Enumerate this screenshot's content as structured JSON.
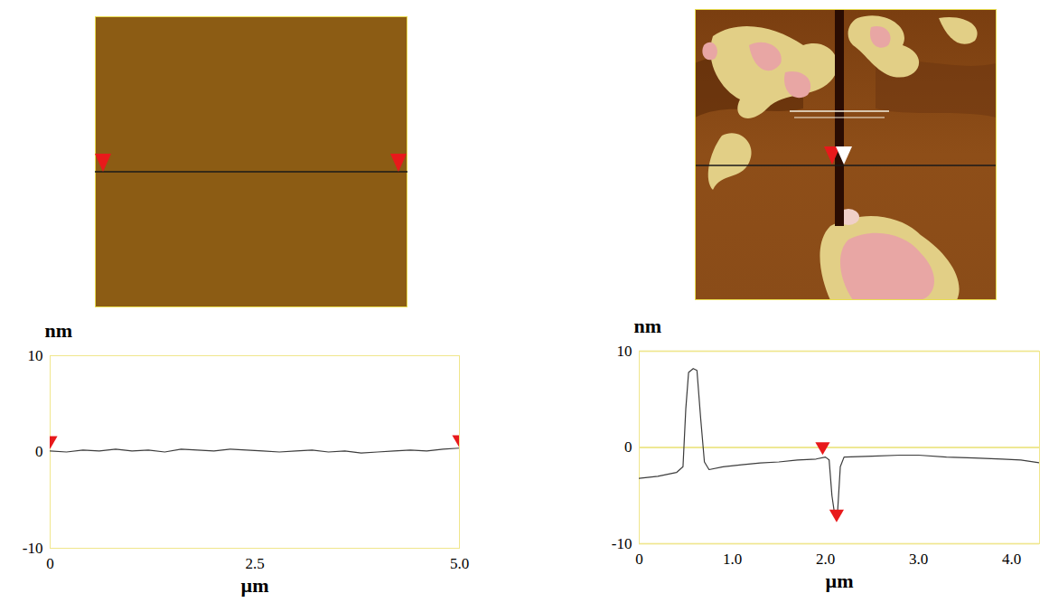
{
  "chart_data": [
    {
      "type": "line",
      "x": [
        0,
        0.2,
        0.4,
        0.6,
        0.8,
        1.0,
        1.2,
        1.4,
        1.6,
        1.8,
        2.0,
        2.2,
        2.4,
        2.6,
        2.8,
        3.0,
        3.2,
        3.4,
        3.6,
        3.8,
        4.0,
        4.2,
        4.4,
        4.6,
        4.8,
        5.0
      ],
      "values": [
        0.1,
        0.0,
        0.2,
        0.1,
        0.3,
        0.1,
        0.2,
        0.0,
        0.3,
        0.2,
        0.1,
        0.3,
        0.2,
        0.1,
        0.0,
        0.1,
        0.2,
        0.0,
        0.1,
        -0.1,
        0.0,
        0.1,
        0.2,
        0.1,
        0.3,
        0.4
      ],
      "color": "#3c3c3c",
      "x_label": "µm",
      "y_label": "nm",
      "xlim": [
        0,
        5
      ],
      "ylim": [
        -10,
        10
      ],
      "xticks": [
        0,
        2.5,
        {
          "value": 5,
          "label": "5.0"
        }
      ],
      "yticks": [
        -10,
        0,
        10
      ],
      "grid": false,
      "cursor_x": [
        0,
        5
      ],
      "cursor_y": [
        1.2,
        1.3
      ]
    },
    {
      "type": "line",
      "x": [
        0,
        0.2,
        0.4,
        0.47,
        0.5,
        0.53,
        0.58,
        0.62,
        0.66,
        0.7,
        0.75,
        0.9,
        1.1,
        1.3,
        1.5,
        1.7,
        1.9,
        2.0,
        2.04,
        2.07,
        2.1,
        2.13,
        2.16,
        2.2,
        2.5,
        2.8,
        3.0,
        3.3,
        3.6,
        3.9,
        4.1,
        4.3
      ],
      "values": [
        -3.2,
        -3.0,
        -2.6,
        -2.0,
        4.0,
        7.8,
        8.2,
        8.0,
        3.0,
        -1.5,
        -2.3,
        -2.0,
        -1.8,
        -1.6,
        -1.5,
        -1.3,
        -1.2,
        -1.0,
        -1.3,
        -5.0,
        -7.0,
        -6.8,
        -2.0,
        -1.0,
        -0.9,
        -0.8,
        -0.8,
        -1.0,
        -1.1,
        -1.2,
        -1.3,
        -1.6
      ],
      "color": "#3c3c3c",
      "x_label": "µm",
      "y_label": "nm",
      "xlim": [
        0,
        4.3
      ],
      "ylim": [
        -10,
        10
      ],
      "xticks": [
        0,
        {
          "value": 1,
          "label": "1.0"
        },
        {
          "value": 2,
          "label": "2.0"
        },
        {
          "value": 3,
          "label": "3.0"
        },
        {
          "value": 4,
          "label": "4.0"
        }
      ],
      "yticks": [
        -10,
        0,
        10
      ],
      "grid": true,
      "cursor_x": [
        1.97,
        2.12
      ],
      "cursor_y": [
        0.1,
        -6.9
      ]
    }
  ]
}
